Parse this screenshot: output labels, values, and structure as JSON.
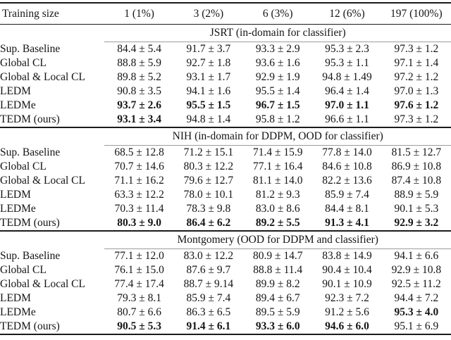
{
  "chart_data": {
    "type": "table",
    "columns": [
      "Training size",
      "1 (1%)",
      "3 (2%)",
      "6 (3%)",
      "12 (6%)",
      "197 (100%)"
    ],
    "sections": [
      {
        "title": "JSRT (in-domain for classifier)",
        "rows": [
          {
            "label": "Sup. Baseline",
            "cells": [
              {
                "text": "84.4 ± 5.4",
                "bold": false
              },
              {
                "text": "91.7 ± 3.7",
                "bold": false
              },
              {
                "text": "93.3 ± 2.9",
                "bold": false
              },
              {
                "text": "95.3 ± 2.3",
                "bold": false
              },
              {
                "text": "97.3 ± 1.2",
                "bold": false
              }
            ]
          },
          {
            "label": "Global CL",
            "cells": [
              {
                "text": "88.8 ± 5.9",
                "bold": false
              },
              {
                "text": "92.7 ± 1.8",
                "bold": false
              },
              {
                "text": "93.6 ± 1.6",
                "bold": false
              },
              {
                "text": "95.3 ± 1.1",
                "bold": false
              },
              {
                "text": "97.1 ± 1.4",
                "bold": false
              }
            ]
          },
          {
            "label": "Global & Local CL",
            "cells": [
              {
                "text": "89.8 ± 5.2",
                "bold": false
              },
              {
                "text": "93.1 ± 1.7",
                "bold": false
              },
              {
                "text": "92.9 ± 1.9",
                "bold": false
              },
              {
                "text": "94.8 ± 1.49",
                "bold": false
              },
              {
                "text": "97.2 ± 1.2",
                "bold": false
              }
            ]
          },
          {
            "label": "LEDM",
            "cells": [
              {
                "text": "90.8 ± 3.5",
                "bold": false
              },
              {
                "text": "94.1 ± 1.6",
                "bold": false
              },
              {
                "text": "95.5 ± 1.4",
                "bold": false
              },
              {
                "text": "96.4 ± 1.4",
                "bold": false
              },
              {
                "text": "97.0 ± 1.3",
                "bold": false
              }
            ]
          },
          {
            "label": "LEDMe",
            "cells": [
              {
                "text": "93.7 ± 2.6",
                "bold": true
              },
              {
                "text": "95.5 ± 1.5",
                "bold": true
              },
              {
                "text": "96.7 ± 1.5",
                "bold": true
              },
              {
                "text": "97.0 ± 1.1",
                "bold": true
              },
              {
                "text": "97.6 ± 1.2",
                "bold": true
              }
            ]
          },
          {
            "label": "TEDM (ours)",
            "cells": [
              {
                "text": "93.1 ± 3.4",
                "bold": true
              },
              {
                "text": "94.8 ± 1.4",
                "bold": false
              },
              {
                "text": "95.8 ± 1.2",
                "bold": false
              },
              {
                "text": "96.6 ± 1.1",
                "bold": false
              },
              {
                "text": "97.3 ± 1.2",
                "bold": false
              }
            ]
          }
        ]
      },
      {
        "title": "NIH (in-domain for DDPM, OOD for classifier)",
        "rows": [
          {
            "label": "Sup. Baseline",
            "cells": [
              {
                "text": "68.5 ± 12.8",
                "bold": false
              },
              {
                "text": "71.2 ± 15.1",
                "bold": false
              },
              {
                "text": "71.4 ± 15.9",
                "bold": false
              },
              {
                "text": "77.8 ± 14.0",
                "bold": false
              },
              {
                "text": "81.5 ± 12.7",
                "bold": false
              }
            ]
          },
          {
            "label": "Global CL",
            "cells": [
              {
                "text": "70.7 ± 14.6",
                "bold": false
              },
              {
                "text": "80.3 ± 12.2",
                "bold": false
              },
              {
                "text": "77.1 ± 16.4",
                "bold": false
              },
              {
                "text": "84.6 ± 10.8",
                "bold": false
              },
              {
                "text": "86.9 ± 10.8",
                "bold": false
              }
            ]
          },
          {
            "label": "Global & Local CL",
            "cells": [
              {
                "text": "71.1 ± 16.2",
                "bold": false
              },
              {
                "text": "79.6 ± 12.7",
                "bold": false
              },
              {
                "text": "81.1 ± 14.0",
                "bold": false
              },
              {
                "text": "82.2 ± 13.6",
                "bold": false
              },
              {
                "text": "87.4 ± 10.8",
                "bold": false
              }
            ]
          },
          {
            "label": "LEDM",
            "cells": [
              {
                "text": "63.3 ± 12.2",
                "bold": false
              },
              {
                "text": "78.0 ± 10.1",
                "bold": false
              },
              {
                "text": "81.2 ± 9.3",
                "bold": false
              },
              {
                "text": "85.9 ± 7.4",
                "bold": false
              },
              {
                "text": "88.9 ± 5.9",
                "bold": false
              }
            ]
          },
          {
            "label": "LEDMe",
            "cells": [
              {
                "text": "70.3 ± 11.4",
                "bold": false
              },
              {
                "text": "78.3 ± 9.8",
                "bold": false
              },
              {
                "text": "83.0 ± 8.6",
                "bold": false
              },
              {
                "text": "84.4 ± 8.1",
                "bold": false
              },
              {
                "text": "90.1 ± 5.3",
                "bold": false
              }
            ]
          },
          {
            "label": "TEDM (ours)",
            "cells": [
              {
                "text": "80.3 ± 9.0",
                "bold": true
              },
              {
                "text": "86.4 ± 6.2",
                "bold": true
              },
              {
                "text": "89.2 ± 5.5",
                "bold": true
              },
              {
                "text": "91.3 ± 4.1",
                "bold": true
              },
              {
                "text": "92.9 ± 3.2",
                "bold": true
              }
            ]
          }
        ]
      },
      {
        "title": "Montgomery (OOD for DDPM and classifier)",
        "rows": [
          {
            "label": "Sup. Baseline",
            "cells": [
              {
                "text": "77.1 ± 12.0",
                "bold": false
              },
              {
                "text": "83.0 ± 12.2",
                "bold": false
              },
              {
                "text": "80.9 ± 14.7",
                "bold": false
              },
              {
                "text": "83.8 ± 14.9",
                "bold": false
              },
              {
                "text": "94.1 ± 6.6",
                "bold": false
              }
            ]
          },
          {
            "label": "Global CL",
            "cells": [
              {
                "text": "76.1 ± 15.0",
                "bold": false
              },
              {
                "text": "87.6 ± 9.7",
                "bold": false
              },
              {
                "text": "88.8 ± 11.4",
                "bold": false
              },
              {
                "text": "90.4 ± 10.4",
                "bold": false
              },
              {
                "text": "92.9 ± 10.8",
                "bold": false
              }
            ]
          },
          {
            "label": "Global & Local CL",
            "cells": [
              {
                "text": "77.4 ± 17.4",
                "bold": false
              },
              {
                "text": "88.7 ± 9.14",
                "bold": false
              },
              {
                "text": "89.9 ± 8.2",
                "bold": false
              },
              {
                "text": "90.1 ± 10.9",
                "bold": false
              },
              {
                "text": "92.5 ± 11.2",
                "bold": false
              }
            ]
          },
          {
            "label": "LEDM",
            "cells": [
              {
                "text": "79.3 ± 8.1",
                "bold": false
              },
              {
                "text": "85.9 ± 7.4",
                "bold": false
              },
              {
                "text": "89.4 ± 6.7",
                "bold": false
              },
              {
                "text": "92.3 ± 7.2",
                "bold": false
              },
              {
                "text": "94.4 ± 7.2",
                "bold": false
              }
            ]
          },
          {
            "label": "LEDMe",
            "cells": [
              {
                "text": "80.7 ± 6.6",
                "bold": false
              },
              {
                "text": "86.3 ± 6.5",
                "bold": false
              },
              {
                "text": "89.5 ± 5.9",
                "bold": false
              },
              {
                "text": "91.2 ± 5.6",
                "bold": false
              },
              {
                "text": "95.3 ± 4.0",
                "bold": true
              }
            ]
          },
          {
            "label": "TEDM (ours)",
            "cells": [
              {
                "text": "90.5 ± 5.3",
                "bold": true
              },
              {
                "text": "91.4 ± 6.1",
                "bold": true
              },
              {
                "text": "93.3 ± 6.0",
                "bold": true
              },
              {
                "text": "94.6 ± 6.0",
                "bold": true
              },
              {
                "text": "95.1 ± 6.9",
                "bold": false
              }
            ]
          }
        ]
      }
    ],
    "style": {
      "rule_color": "#1b1b1b",
      "partial_rule_color": "#9c9c9c",
      "text_color": "#151515",
      "background": "#ffffff"
    }
  }
}
